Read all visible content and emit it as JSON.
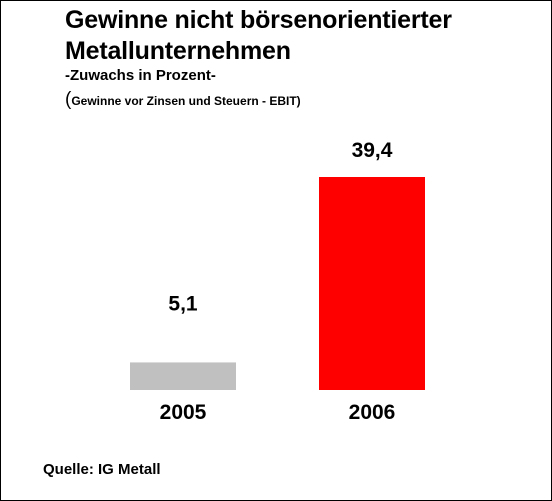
{
  "chart_data": {
    "type": "bar",
    "title_lines": [
      "Gewinne nicht börsenorientierter",
      "Metallunternehmen"
    ],
    "subtitle": "-Zuwachs in Prozent-",
    "note_open": "(",
    "note": "Gewinne vor Zinsen und Steuern - EBIT)",
    "categories": [
      "2005",
      "2006"
    ],
    "values": [
      5.1,
      39.4
    ],
    "value_labels": [
      "5,1",
      "39,4"
    ],
    "bar_colors": [
      "#c0c0c0",
      "#ff0000"
    ],
    "ylim": [
      0,
      39.4
    ],
    "grid": false,
    "legend": "none",
    "source": "Quelle: IG Metall"
  }
}
